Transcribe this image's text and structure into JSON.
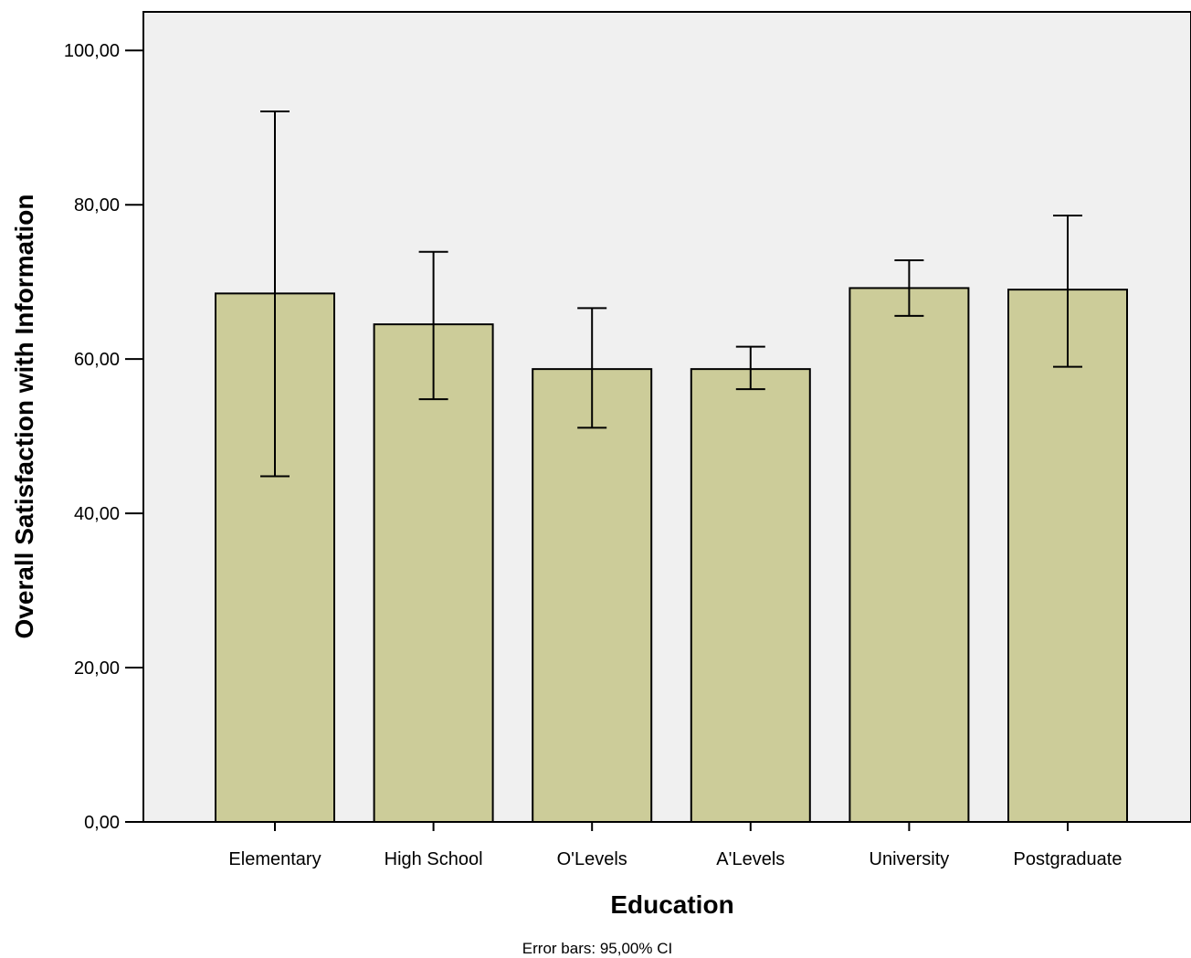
{
  "chart_data": {
    "type": "bar",
    "categories": [
      "Elementary",
      "High School",
      "O'Levels",
      "A'Levels",
      "University",
      "Postgraduate"
    ],
    "values": [
      68.5,
      64.5,
      58.7,
      58.7,
      69.2,
      69.0
    ],
    "error_bars": {
      "lower": [
        44.8,
        54.8,
        51.1,
        56.1,
        65.6,
        59.0
      ],
      "upper": [
        92.1,
        73.9,
        66.6,
        61.6,
        72.8,
        78.6
      ]
    },
    "yticks": [
      "0,00",
      "20,00",
      "40,00",
      "60,00",
      "80,00",
      "100,00"
    ],
    "ytick_values": [
      0,
      20,
      40,
      60,
      80,
      100
    ],
    "ylim": [
      0,
      105
    ],
    "xlabel": "Education",
    "ylabel": "Overall Satisfaction with Information",
    "note": "Error bars: 95,00% CI",
    "grid": false,
    "colors": {
      "bar_fill": "#cccc99",
      "plot_background": "#f0f0f0",
      "stroke": "#000000"
    }
  }
}
